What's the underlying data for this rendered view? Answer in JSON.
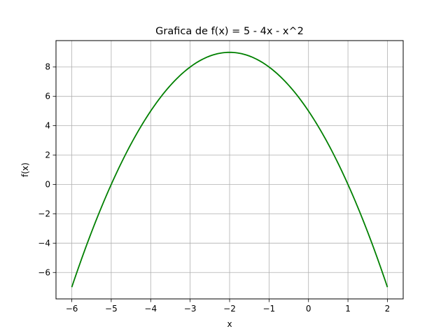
{
  "chart_data": {
    "type": "line",
    "title": "Grafica de f(x) = 5 - 4x - x^2",
    "xlabel": "x",
    "ylabel": "f(x)",
    "xlim": [
      -6.4,
      2.4
    ],
    "ylim": [
      -7.8,
      9.8
    ],
    "xticks": [
      -6,
      -5,
      -4,
      -3,
      -2,
      -1,
      0,
      1,
      2
    ],
    "yticks": [
      -6,
      -4,
      -2,
      0,
      2,
      4,
      6,
      8
    ],
    "xtick_labels": [
      "−6",
      "−5",
      "−4",
      "−3",
      "−2",
      "−1",
      "0",
      "1",
      "2"
    ],
    "ytick_labels": [
      "−6",
      "−4",
      "−2",
      "0",
      "2",
      "4",
      "6",
      "8"
    ],
    "grid": true,
    "series": [
      {
        "color": "#008000",
        "x": [
          -6,
          -5.5,
          -5,
          -4.5,
          -4,
          -3.5,
          -3,
          -2.5,
          -2,
          -1.5,
          -1,
          -0.5,
          0,
          0.5,
          1,
          1.5,
          2
        ],
        "y": [
          -7,
          -3.25,
          0,
          2.75,
          5,
          6.75,
          8,
          8.75,
          9,
          8.75,
          8,
          6.75,
          5,
          2.75,
          0,
          -3.25,
          -7
        ]
      }
    ]
  }
}
